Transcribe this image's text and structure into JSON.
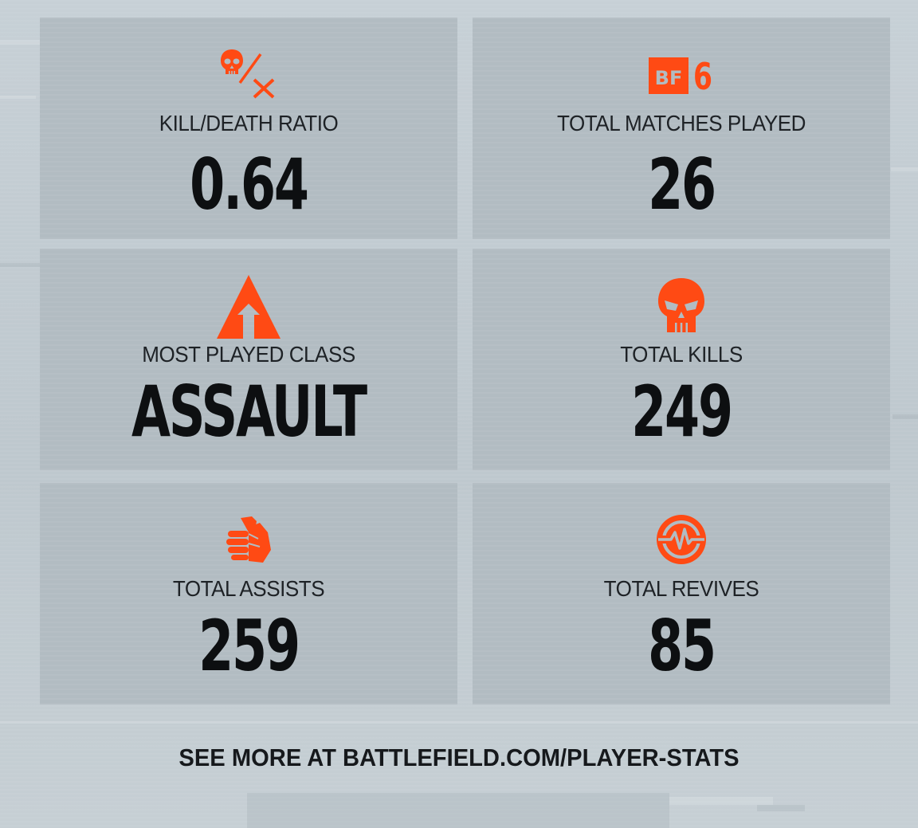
{
  "accent_color": "#ff4a14",
  "stats": [
    {
      "id": "kd",
      "icon": "skull-ratio-icon",
      "label": "KILL/DEATH RATIO",
      "value": "0.64"
    },
    {
      "id": "matches",
      "icon": "bf6-logo-icon",
      "label": "TOTAL MATCHES PLAYED",
      "value": "26"
    },
    {
      "id": "class",
      "icon": "assault-class-icon",
      "label": "MOST PLAYED CLASS",
      "value": "ASSAULT"
    },
    {
      "id": "kills",
      "icon": "skull-icon",
      "label": "TOTAL KILLS",
      "value": "249"
    },
    {
      "id": "assists",
      "icon": "handshake-icon",
      "label": "TOTAL ASSISTS",
      "value": "259"
    },
    {
      "id": "revives",
      "icon": "revive-pulse-icon",
      "label": "TOTAL REVIVES",
      "value": "85"
    }
  ],
  "bf6_logo": {
    "badge_text": "BF",
    "number": "6"
  },
  "footer": {
    "text": "SEE MORE AT BATTLEFIELD.COM/PLAYER-STATS"
  }
}
